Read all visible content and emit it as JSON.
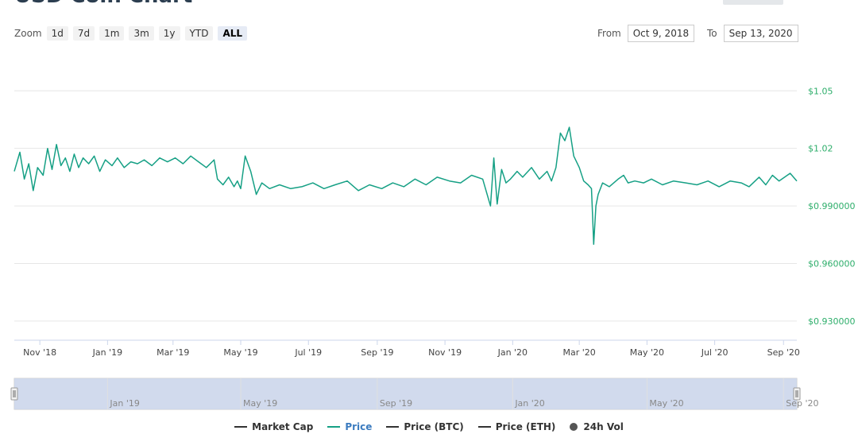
{
  "header": {
    "title": "USD Coin Chart"
  },
  "zoom": {
    "label": "Zoom",
    "buttons": [
      "1d",
      "7d",
      "1m",
      "3m",
      "1y",
      "YTD",
      "ALL"
    ],
    "active": "ALL"
  },
  "range": {
    "from_label": "From",
    "from_value": "Oct 9, 2018",
    "to_label": "To",
    "to_value": "Sep 13, 2020"
  },
  "legend": {
    "market_cap": "Market Cap",
    "price": "Price",
    "price_btc": "Price (BTC)",
    "price_eth": "Price (ETH)",
    "vol": "24h Vol"
  },
  "colors": {
    "price_line": "#16a085",
    "axis_label": "#2eae6b",
    "grid": "#e6e6e6",
    "navigator_fill": "#ccd6eb",
    "legend_active": "#3b7bbf",
    "legend_inactive": "#333333"
  },
  "chart_data": {
    "type": "line",
    "title": "",
    "x_range": [
      "2018-10-09",
      "2020-09-13"
    ],
    "ylim": [
      0.92,
      1.07
    ],
    "y_ticks": [
      0.93,
      0.96,
      0.99,
      1.02,
      1.05
    ],
    "y_tick_labels": [
      "$0.930000",
      "$0.960000",
      "$0.990000",
      "$1.02",
      "$1.05"
    ],
    "x_tick_labels": [
      "Nov '18",
      "Jan '19",
      "Mar '19",
      "May '19",
      "Jul '19",
      "Sep '19",
      "Nov '19",
      "Jan '20",
      "Mar '20",
      "May '20",
      "Jul '20",
      "Sep '20"
    ],
    "x_tick_dates": [
      "2018-11-01",
      "2019-01-01",
      "2019-03-01",
      "2019-05-01",
      "2019-07-01",
      "2019-09-01",
      "2019-11-01",
      "2020-01-01",
      "2020-03-01",
      "2020-05-01",
      "2020-07-01",
      "2020-09-01"
    ],
    "grid": true,
    "legend_position": "bottom",
    "series": [
      {
        "name": "Price",
        "x": [
          "2018-10-09",
          "2018-10-14",
          "2018-10-18",
          "2018-10-22",
          "2018-10-26",
          "2018-10-30",
          "2018-11-04",
          "2018-11-08",
          "2018-11-12",
          "2018-11-16",
          "2018-11-20",
          "2018-11-24",
          "2018-11-28",
          "2018-12-02",
          "2018-12-06",
          "2018-12-10",
          "2018-12-15",
          "2018-12-20",
          "2018-12-25",
          "2018-12-30",
          "2019-01-05",
          "2019-01-10",
          "2019-01-16",
          "2019-01-22",
          "2019-01-28",
          "2019-02-03",
          "2019-02-10",
          "2019-02-17",
          "2019-02-24",
          "2019-03-03",
          "2019-03-10",
          "2019-03-17",
          "2019-03-24",
          "2019-03-31",
          "2019-04-07",
          "2019-04-10",
          "2019-04-15",
          "2019-04-20",
          "2019-04-25",
          "2019-04-28",
          "2019-05-01",
          "2019-05-05",
          "2019-05-10",
          "2019-05-15",
          "2019-05-20",
          "2019-05-27",
          "2019-06-05",
          "2019-06-15",
          "2019-06-25",
          "2019-07-05",
          "2019-07-15",
          "2019-07-25",
          "2019-08-05",
          "2019-08-15",
          "2019-08-25",
          "2019-09-05",
          "2019-09-15",
          "2019-09-25",
          "2019-10-05",
          "2019-10-15",
          "2019-10-25",
          "2019-11-05",
          "2019-11-15",
          "2019-11-25",
          "2019-12-05",
          "2019-12-12",
          "2019-12-15",
          "2019-12-18",
          "2019-12-22",
          "2019-12-26",
          "2019-12-30",
          "2020-01-05",
          "2020-01-10",
          "2020-01-18",
          "2020-01-25",
          "2020-02-01",
          "2020-02-05",
          "2020-02-09",
          "2020-02-13",
          "2020-02-17",
          "2020-02-21",
          "2020-02-25",
          "2020-03-01",
          "2020-03-05",
          "2020-03-09",
          "2020-03-12",
          "2020-03-13",
          "2020-03-14",
          "2020-03-16",
          "2020-03-18",
          "2020-03-22",
          "2020-03-28",
          "2020-04-05",
          "2020-04-10",
          "2020-04-14",
          "2020-04-20",
          "2020-04-28",
          "2020-05-05",
          "2020-05-15",
          "2020-05-25",
          "2020-06-05",
          "2020-06-15",
          "2020-06-25",
          "2020-07-05",
          "2020-07-15",
          "2020-07-25",
          "2020-08-01",
          "2020-08-10",
          "2020-08-16",
          "2020-08-22",
          "2020-08-28",
          "2020-09-02",
          "2020-09-07",
          "2020-09-13"
        ],
        "y": [
          1.008,
          1.018,
          1.004,
          1.012,
          0.998,
          1.01,
          1.006,
          1.02,
          1.009,
          1.022,
          1.011,
          1.015,
          1.008,
          1.017,
          1.01,
          1.015,
          1.012,
          1.016,
          1.008,
          1.014,
          1.011,
          1.015,
          1.01,
          1.013,
          1.012,
          1.014,
          1.011,
          1.015,
          1.013,
          1.015,
          1.012,
          1.016,
          1.013,
          1.01,
          1.014,
          1.004,
          1.001,
          1.005,
          1.0,
          1.003,
          0.999,
          1.016,
          1.008,
          0.996,
          1.002,
          0.999,
          1.001,
          0.999,
          1.0,
          1.002,
          0.999,
          1.001,
          1.003,
          0.998,
          1.001,
          0.999,
          1.002,
          1.0,
          1.004,
          1.001,
          1.005,
          1.003,
          1.002,
          1.006,
          1.004,
          0.99,
          1.015,
          0.991,
          1.009,
          1.002,
          1.004,
          1.008,
          1.005,
          1.01,
          1.004,
          1.008,
          1.003,
          1.01,
          1.028,
          1.024,
          1.031,
          1.016,
          1.01,
          1.003,
          1.001,
          0.999,
          0.985,
          0.97,
          0.99,
          0.996,
          1.002,
          1.0,
          1.004,
          1.006,
          1.002,
          1.003,
          1.002,
          1.004,
          1.001,
          1.003,
          1.002,
          1.001,
          1.003,
          1.0,
          1.003,
          1.002,
          1.0,
          1.005,
          1.001,
          1.006,
          1.003,
          1.005,
          1.007,
          1.003
        ]
      }
    ]
  }
}
